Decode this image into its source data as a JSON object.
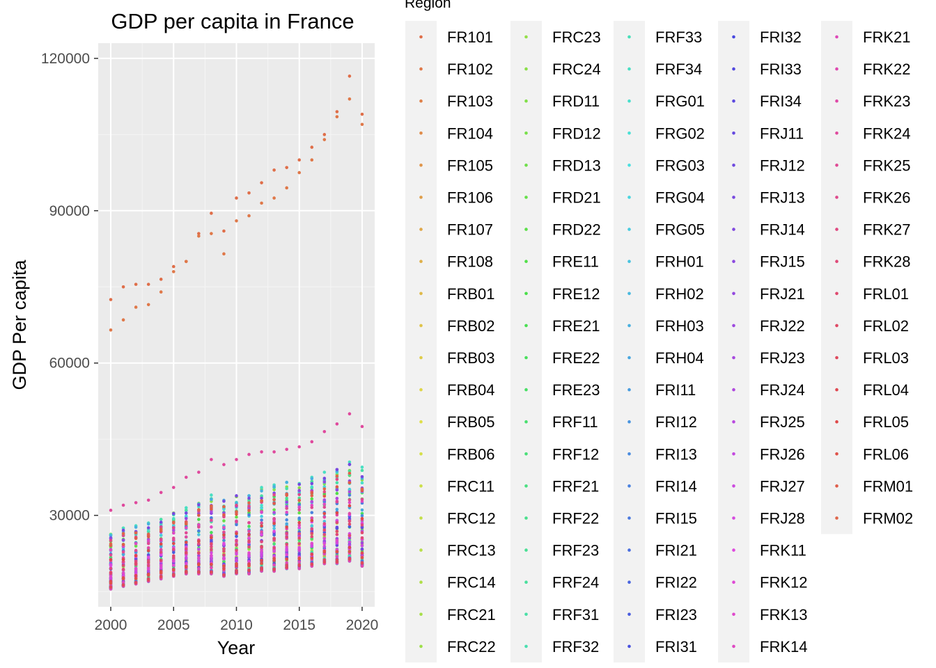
{
  "chart_data": {
    "type": "scatter",
    "title": "GDP per capita in France",
    "xlabel": "Year",
    "ylabel": "GDP Per capita",
    "xlim": [
      1999,
      2021
    ],
    "ylim": [
      12000,
      123000
    ],
    "x_ticks": [
      2000,
      2005,
      2010,
      2015,
      2020
    ],
    "x_tick_labels": [
      "2000",
      "2005",
      "2010",
      "2015",
      "2020"
    ],
    "y_ticks": [
      30000,
      60000,
      90000,
      120000
    ],
    "y_tick_labels": [
      "30000",
      "60000",
      "90000",
      "120000"
    ],
    "grid": true,
    "background": "#EBEBEB",
    "legend_title": "Region",
    "legend_position": "right",
    "years": [
      2000,
      2001,
      2002,
      2003,
      2004,
      2005,
      2006,
      2007,
      2008,
      2009,
      2010,
      2011,
      2012,
      2013,
      2014,
      2015,
      2016,
      2017,
      2018,
      2019,
      2020
    ],
    "regions": [
      "FR101",
      "FR102",
      "FR103",
      "FR104",
      "FR105",
      "FR106",
      "FR107",
      "FR108",
      "FRB01",
      "FRB02",
      "FRB03",
      "FRB04",
      "FRB05",
      "FRB06",
      "FRC11",
      "FRC12",
      "FRC13",
      "FRC14",
      "FRC21",
      "FRC22",
      "FRC23",
      "FRC24",
      "FRD11",
      "FRD12",
      "FRD13",
      "FRD21",
      "FRD22",
      "FRE11",
      "FRE12",
      "FRE21",
      "FRE22",
      "FRE23",
      "FRF11",
      "FRF12",
      "FRF21",
      "FRF22",
      "FRF23",
      "FRF24",
      "FRF31",
      "FRF32",
      "FRF33",
      "FRF34",
      "FRG01",
      "FRG02",
      "FRG03",
      "FRG04",
      "FRG05",
      "FRH01",
      "FRH02",
      "FRH03",
      "FRH04",
      "FRI11",
      "FRI12",
      "FRI13",
      "FRI14",
      "FRI15",
      "FRI21",
      "FRI22",
      "FRI23",
      "FRI31",
      "FRI32",
      "FRI33",
      "FRI34",
      "FRJ11",
      "FRJ12",
      "FRJ13",
      "FRJ14",
      "FRJ15",
      "FRJ21",
      "FRJ22",
      "FRJ23",
      "FRJ24",
      "FRJ25",
      "FRJ26",
      "FRJ27",
      "FRJ28",
      "FRK11",
      "FRK12",
      "FRK13",
      "FRK14",
      "FRK21",
      "FRK22",
      "FRK23",
      "FRK24",
      "FRK25",
      "FRK26",
      "FRK27",
      "FRK28",
      "FRL01",
      "FRL02",
      "FRL03",
      "FRL04",
      "FRL05",
      "FRL06",
      "FRM01",
      "FRM02"
    ],
    "highlighted_series": [
      {
        "region": "FR101",
        "values": [
          72500,
          75000,
          75500,
          75500,
          76500,
          79000,
          80000,
          85500,
          89500,
          86000,
          92500,
          93500,
          95500,
          98000,
          98500,
          100000,
          102500,
          105000,
          109500,
          116500,
          109000
        ]
      },
      {
        "region": "FR102",
        "values": [
          66500,
          68500,
          71000,
          71500,
          74000,
          78000,
          80000,
          85000,
          85500,
          81500,
          88000,
          89000,
          91500,
          92500,
          94500,
          97500,
          100000,
          104000,
          108500,
          112000,
          107000
        ]
      },
      {
        "region": "FRK24",
        "values": [
          31000,
          32000,
          32500,
          33000,
          34500,
          35500,
          37500,
          38500,
          41000,
          40000,
          41000,
          42000,
          42500,
          42500,
          43000,
          43500,
          44500,
          46500,
          48000,
          50000,
          47500
        ]
      }
    ],
    "bulk_range_note": "remaining regions lie between about 15000 and 43000",
    "bulk_min": [
      15500,
      16000,
      16500,
      17000,
      17500,
      18000,
      18500,
      18500,
      18500,
      18000,
      18500,
      18500,
      19000,
      19000,
      19500,
      19500,
      20000,
      20500,
      20500,
      21000,
      20000
    ],
    "bulk_max": [
      29000,
      30000,
      30500,
      31000,
      32000,
      33000,
      34000,
      35000,
      36500,
      35500,
      36500,
      37500,
      38000,
      38500,
      39000,
      39500,
      40000,
      41000,
      42000,
      43000,
      42000
    ]
  }
}
